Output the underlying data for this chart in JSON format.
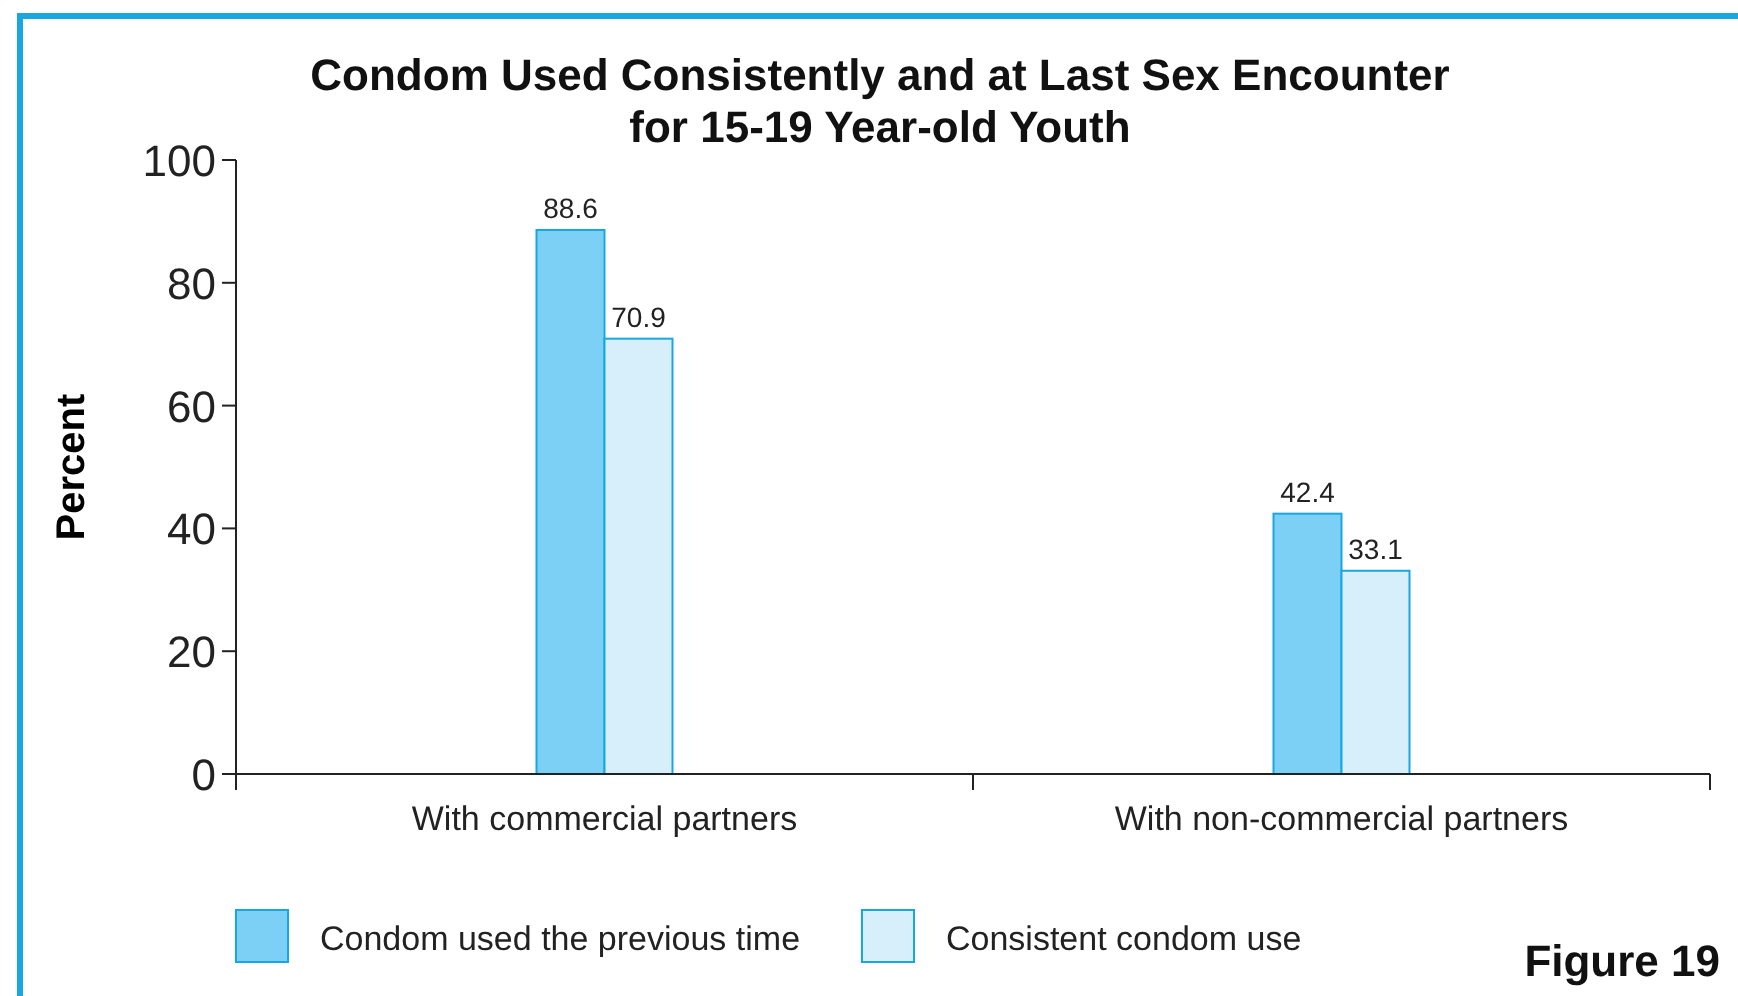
{
  "chart_data": {
    "type": "bar",
    "title": "Condom Used Consistently and at Last Sex Encounter\nfor 15-19 Year-old Youth",
    "ylabel": "Percent",
    "categories": [
      "With commercial partners",
      "With non-commercial partners"
    ],
    "series": [
      {
        "name": "Condom used the previous time",
        "color": "#7dd0f5",
        "values": [
          88.6,
          42.4
        ]
      },
      {
        "name": "Consistent condom use",
        "color": "#d6effb",
        "values": [
          70.9,
          33.1
        ]
      }
    ],
    "ylim": [
      0,
      100
    ],
    "yticks": [
      0,
      20,
      40,
      60,
      80,
      100
    ],
    "data_labels": true,
    "legend": "bottom",
    "grid": false,
    "annotations": [
      "Figure 19"
    ]
  }
}
